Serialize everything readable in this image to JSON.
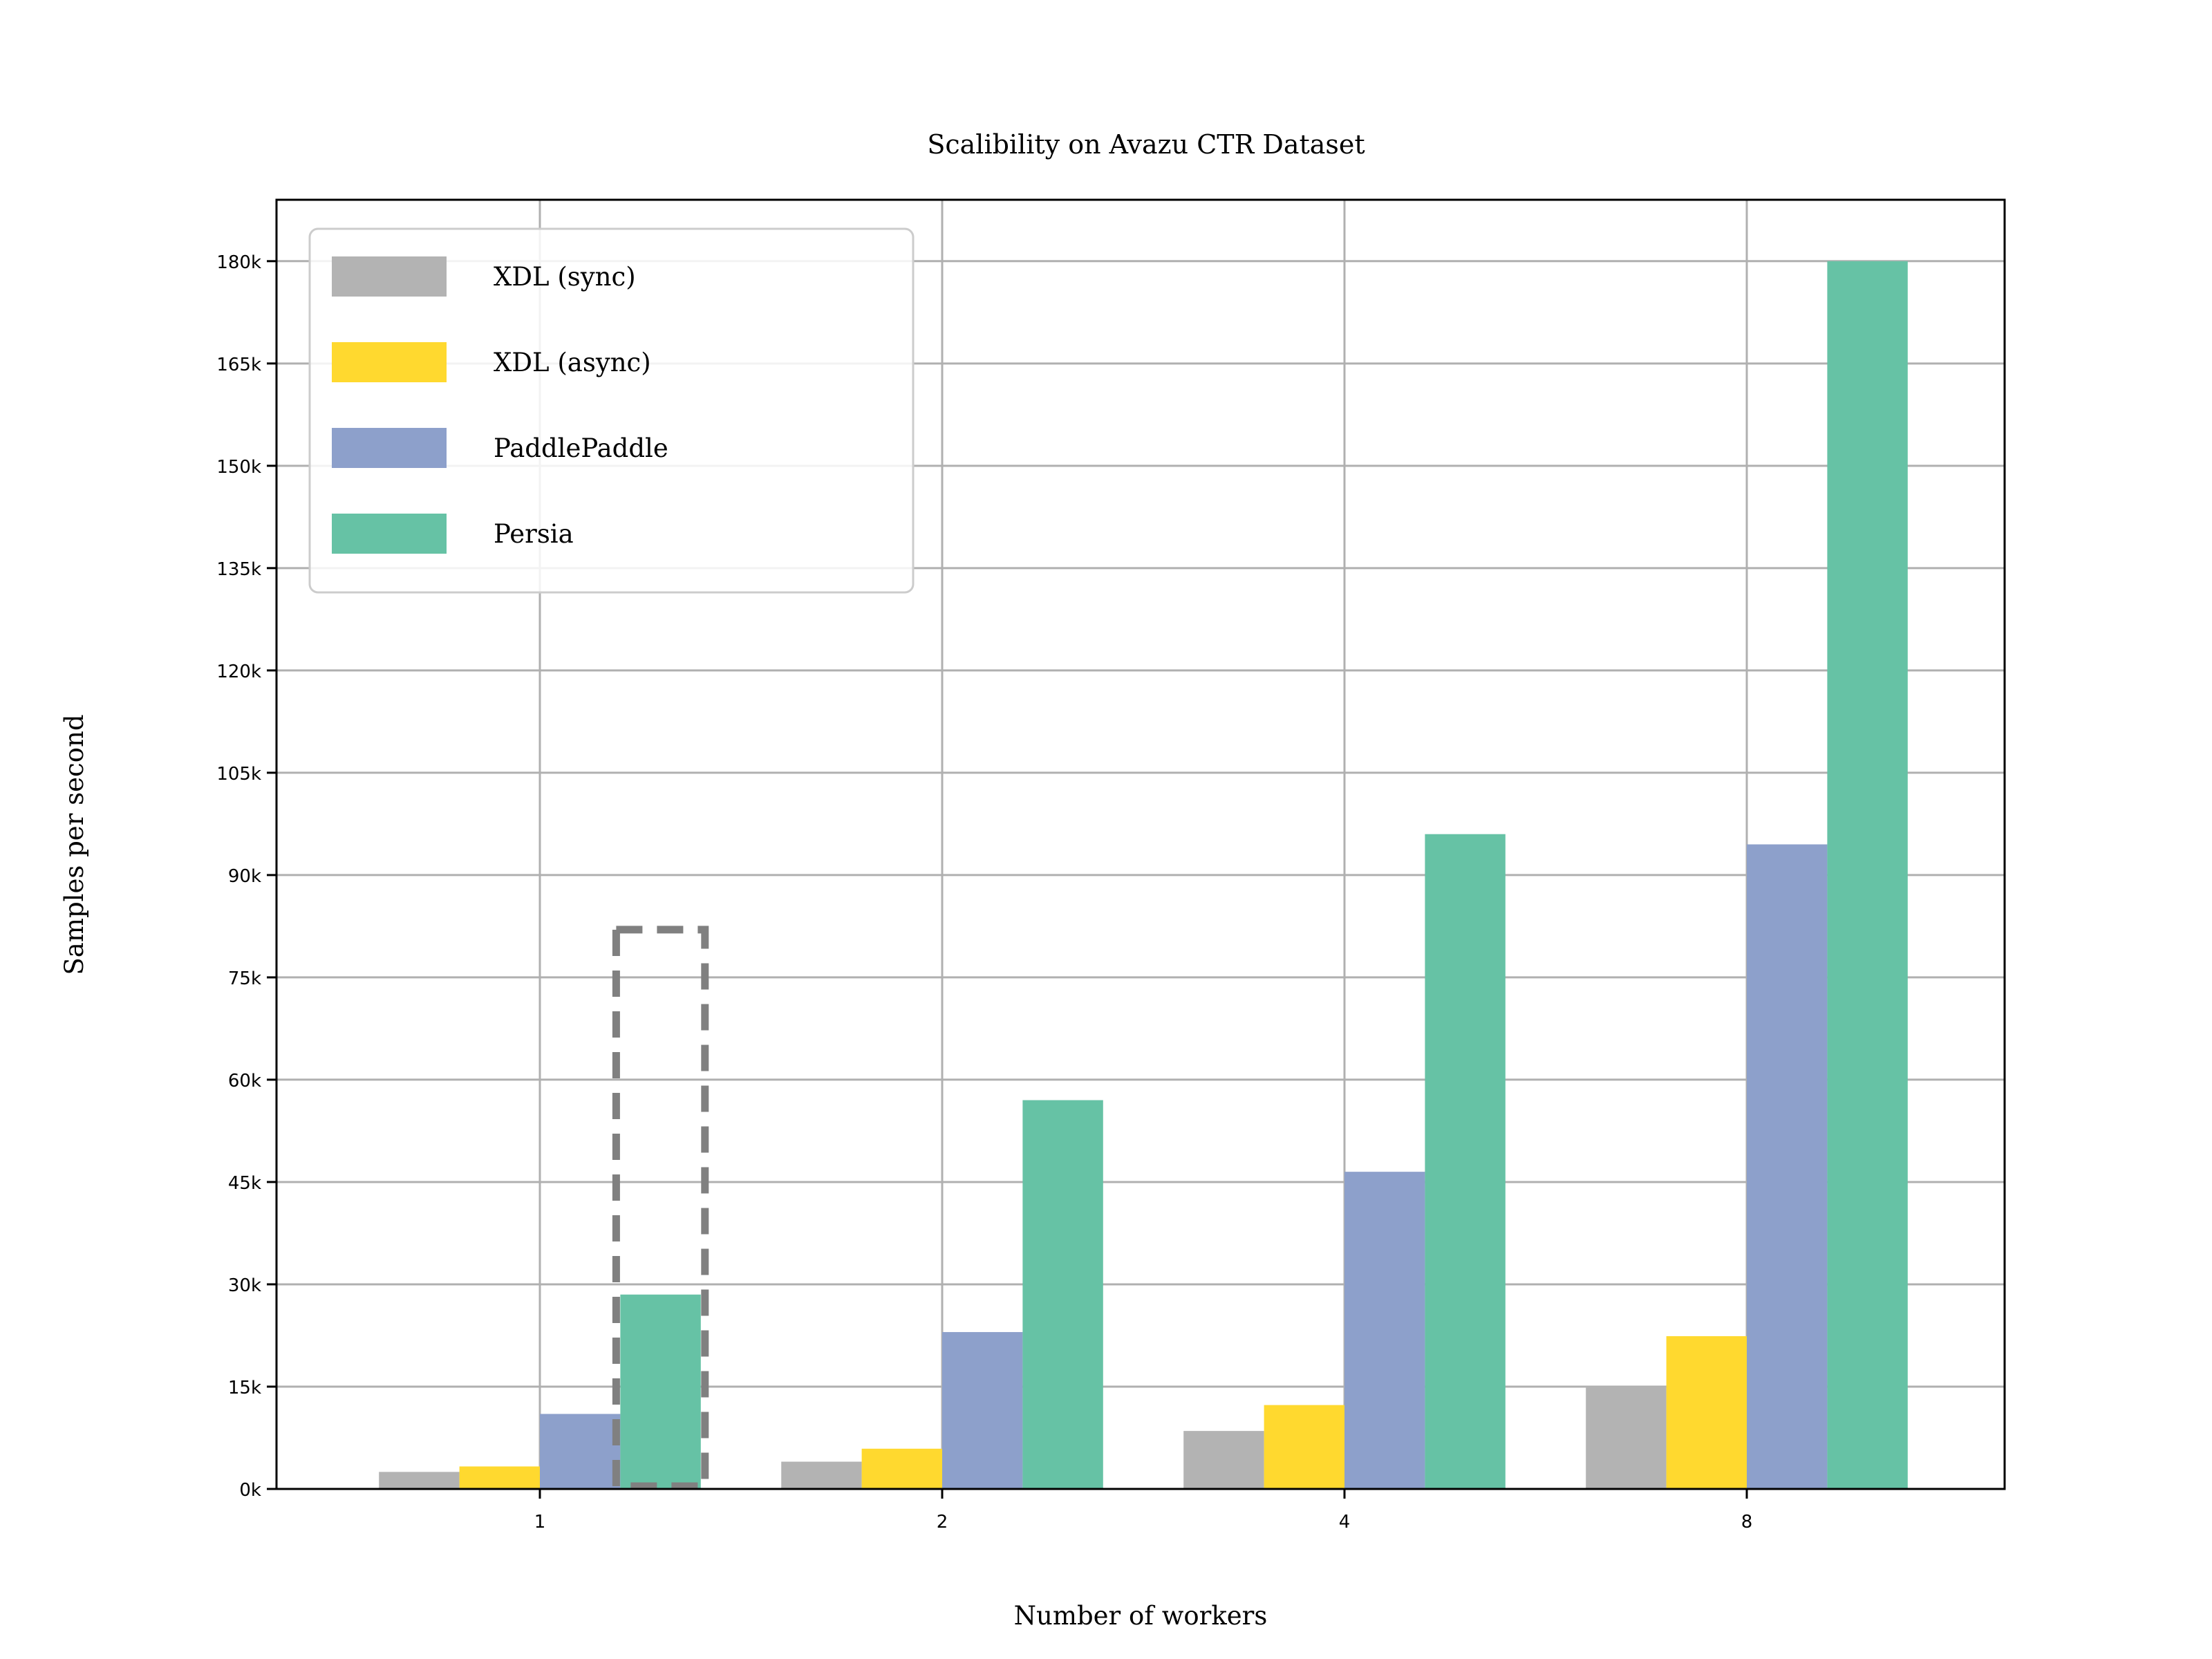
{
  "chart_data": {
    "type": "bar",
    "title": "Scalibility on Avazu CTR Dataset",
    "xlabel": "Number of workers",
    "ylabel": "Samples per second",
    "categories": [
      "1",
      "2",
      "4",
      "8"
    ],
    "ylim": [
      0,
      189000
    ],
    "yticks": [
      0,
      15000,
      30000,
      45000,
      60000,
      75000,
      90000,
      105000,
      120000,
      135000,
      150000,
      165000,
      180000
    ],
    "ytick_labels": [
      "0k",
      "15k",
      "30k",
      "45k",
      "60k",
      "75k",
      "90k",
      "105k",
      "120k",
      "135k",
      "150k",
      "165k",
      "180k"
    ],
    "grid": true,
    "legend_position": "upper-left",
    "series": [
      {
        "name": "XDL (sync)",
        "color": "#b3b3b3",
        "values": [
          2500,
          4000,
          8500,
          15000
        ]
      },
      {
        "name": "XDL (async)",
        "color": "#ffd92f",
        "values": [
          3300,
          5900,
          12300,
          22400
        ]
      },
      {
        "name": "PaddlePaddle",
        "color": "#8da0cb",
        "values": [
          11000,
          23000,
          46500,
          94500
        ]
      },
      {
        "name": "Persia",
        "color": "#66c2a5",
        "values": [
          28500,
          57000,
          96000,
          180000
        ]
      }
    ],
    "annotation": {
      "type": "dashed-box",
      "category": "1",
      "series": "Persia",
      "ymax": 82000,
      "color": "#808080"
    }
  }
}
